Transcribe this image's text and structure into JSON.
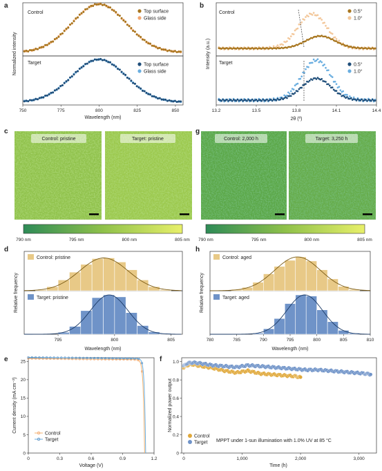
{
  "panel_letters": [
    "a",
    "b",
    "c",
    "g",
    "d",
    "h",
    "e",
    "f"
  ],
  "colors": {
    "control_dark": "#a8761f",
    "control_light": "#f3a66f",
    "target_dark": "#1f4e7a",
    "target_light": "#6aaee0",
    "hist_control": "#e8c987",
    "hist_target": "#6f93c8",
    "fit_control": "#7a5a14",
    "fit_target": "#1b3a66"
  },
  "chart_data": [
    {
      "id": "a",
      "type": "line",
      "xlabel": "Wavelength (nm)",
      "ylabel": "Normalized intensity",
      "xlim": [
        750,
        855
      ],
      "xticks": [
        750,
        775,
        800,
        825,
        850
      ],
      "subplots": [
        {
          "label": "Control",
          "peak": 800,
          "fwhm": 42,
          "series": [
            {
              "name": "Top surface"
            },
            {
              "name": "Glass side"
            }
          ]
        },
        {
          "label": "Target",
          "peak": 800,
          "fwhm": 42,
          "series": [
            {
              "name": "Top surface"
            },
            {
              "name": "Glass side"
            }
          ]
        }
      ]
    },
    {
      "id": "b",
      "type": "line",
      "xlabel": "2θ (º)",
      "ylabel": "Intensity (a.u.)",
      "xlim": [
        13.2,
        14.4
      ],
      "xticks": [
        13.2,
        13.5,
        13.8,
        14.1,
        14.4
      ],
      "subplots": [
        {
          "label": "Control",
          "peaks": {
            "0.5°": 13.98,
            "1.0°": 13.92
          },
          "series": [
            {
              "name": "0.5°"
            },
            {
              "name": "1.0°"
            }
          ]
        },
        {
          "label": "Target",
          "peaks": {
            "0.5°": 13.95,
            "1.0°": 13.95
          },
          "series": [
            {
              "name": "0.5°"
            },
            {
              "name": "1.0°"
            }
          ]
        }
      ]
    },
    {
      "id": "c",
      "type": "heatmap",
      "images": [
        "Control: pristine",
        "Target: pristine"
      ],
      "colorbar": {
        "min": 790,
        "max": 805,
        "ticks": [
          "790 nm",
          "795 nm",
          "800 nm",
          "805 nm"
        ]
      }
    },
    {
      "id": "g",
      "type": "heatmap",
      "images": [
        "Control: 2,000 h",
        "Target: 3,250 h"
      ],
      "colorbar": {
        "min": 790,
        "max": 805,
        "ticks": [
          "790 nm",
          "795 nm",
          "800 nm",
          "805 nm"
        ]
      }
    },
    {
      "id": "d",
      "type": "bar",
      "xlabel": "Wavelength (nm)",
      "ylabel": "Relative frequency",
      "xlim": [
        792,
        806
      ],
      "xticks": [
        795,
        800,
        805
      ],
      "bin_width": 1,
      "subplots": [
        {
          "label": "Control: pristine",
          "bin_starts": [
            793,
            794,
            795,
            796,
            797,
            798,
            799,
            800,
            801,
            802,
            803,
            804
          ],
          "values": [
            0.03,
            0.12,
            0.32,
            0.55,
            0.78,
            0.95,
            0.97,
            0.85,
            0.62,
            0.32,
            0.12,
            0.03
          ]
        },
        {
          "label": "Target: pristine",
          "bin_starts": [
            795,
            796,
            797,
            798,
            799,
            800,
            801,
            802,
            803,
            804
          ],
          "values": [
            0.05,
            0.2,
            0.6,
            0.93,
            1.0,
            0.95,
            0.55,
            0.22,
            0.06,
            0.02
          ]
        }
      ]
    },
    {
      "id": "h",
      "type": "bar",
      "xlabel": "Wavelength (nm)",
      "ylabel": "Relative frequency",
      "xlim": [
        780,
        810
      ],
      "xticks": [
        780,
        785,
        790,
        795,
        800,
        805,
        810
      ],
      "bin_width": 2,
      "subplots": [
        {
          "label": "Control: aged",
          "bin_starts": [
            784,
            786,
            788,
            790,
            792,
            794,
            796,
            798,
            800,
            802,
            804,
            806
          ],
          "values": [
            0.04,
            0.1,
            0.25,
            0.5,
            0.72,
            0.9,
            1.0,
            0.88,
            0.62,
            0.35,
            0.13,
            0.04
          ]
        },
        {
          "label": "Target: aged",
          "bin_starts": [
            788,
            790,
            792,
            794,
            796,
            798,
            800,
            802,
            804,
            806
          ],
          "values": [
            0.03,
            0.14,
            0.4,
            0.78,
            1.0,
            0.97,
            0.62,
            0.32,
            0.1,
            0.03
          ]
        }
      ]
    },
    {
      "id": "e",
      "type": "line",
      "xlabel": "Voltage (V)",
      "ylabel": "Current density (mA cm⁻²)",
      "xlim": [
        0,
        1.2
      ],
      "ylim": [
        0,
        26
      ],
      "xticks": [
        0,
        0.3,
        0.6,
        0.9,
        1.2
      ],
      "yticks": [
        0,
        5,
        10,
        15,
        20,
        25
      ],
      "series": [
        {
          "name": "Control",
          "jsc": 25.8,
          "voc": 1.11,
          "slope": 0.012
        },
        {
          "name": "Target",
          "jsc": 26.1,
          "voc": 1.12,
          "slope": 0.0115
        }
      ]
    },
    {
      "id": "f",
      "type": "scatter",
      "xlabel": "Time (h)",
      "ylabel": "Normalized power output",
      "xlim": [
        0,
        3300
      ],
      "ylim": [
        0,
        1.02
      ],
      "xticks": [
        0,
        1000,
        2000,
        3000
      ],
      "xticklabels": [
        "0",
        "1,000",
        "2,000",
        "3,000"
      ],
      "yticks": [
        0,
        0.2,
        0.4,
        0.6,
        0.8,
        1.0
      ],
      "yticklabels": [
        "0",
        "0.2",
        "0.4",
        "0.6",
        "0.8",
        "1.0"
      ],
      "annotation": "MPPT under 1-sun illumination with 1.0% UV at 85  °C",
      "series": [
        {
          "name": "Control",
          "x": [
            0,
            50,
            150,
            300,
            500,
            700,
            900,
            1100,
            1300,
            1500,
            1700,
            1900,
            2000
          ],
          "y": [
            0.93,
            0.96,
            0.97,
            0.95,
            0.93,
            0.9,
            0.88,
            0.9,
            0.87,
            0.86,
            0.85,
            0.84,
            0.83
          ]
        },
        {
          "name": "Target",
          "x": [
            0,
            50,
            150,
            300,
            500,
            700,
            900,
            1100,
            1300,
            1500,
            1700,
            1900,
            2100,
            2300,
            2500,
            2700,
            2900,
            3100,
            3200
          ],
          "y": [
            0.95,
            0.98,
            0.99,
            0.98,
            0.96,
            0.95,
            0.94,
            0.96,
            0.95,
            0.94,
            0.93,
            0.92,
            0.91,
            0.91,
            0.9,
            0.89,
            0.88,
            0.87,
            0.86
          ]
        }
      ]
    }
  ]
}
